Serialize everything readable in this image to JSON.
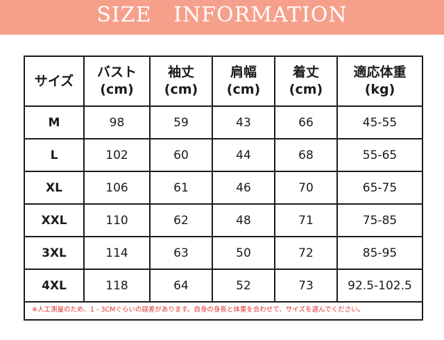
{
  "banner": {
    "title": "SIZE   INFORMATION",
    "color": "#f6a08c"
  },
  "table": {
    "headers": [
      {
        "line1": "サイズ",
        "line2": ""
      },
      {
        "line1": "バスト",
        "line2": "(cm)"
      },
      {
        "line1": "袖丈",
        "line2": "(cm)"
      },
      {
        "line1": "肩幅",
        "line2": "(cm)"
      },
      {
        "line1": "着丈",
        "line2": "(cm)"
      },
      {
        "line1": "適応体重",
        "line2": "(kg)"
      }
    ],
    "rows": [
      [
        "M",
        "98",
        "59",
        "43",
        "66",
        "45-55"
      ],
      [
        "L",
        "102",
        "60",
        "44",
        "68",
        "55-65"
      ],
      [
        "XL",
        "106",
        "61",
        "46",
        "70",
        "65-75"
      ],
      [
        "XXL",
        "110",
        "62",
        "48",
        "71",
        "75-85"
      ],
      [
        "3XL",
        "114",
        "63",
        "50",
        "72",
        "85-95"
      ],
      [
        "4XL",
        "118",
        "64",
        "52",
        "73",
        "92.5-102.5"
      ]
    ]
  },
  "note": "※人工測量のため、1 - 3CMぐらいの誤差があります。自身の身長と体重を合わせて、サイズを選んでください。",
  "note_color": "#e03030"
}
